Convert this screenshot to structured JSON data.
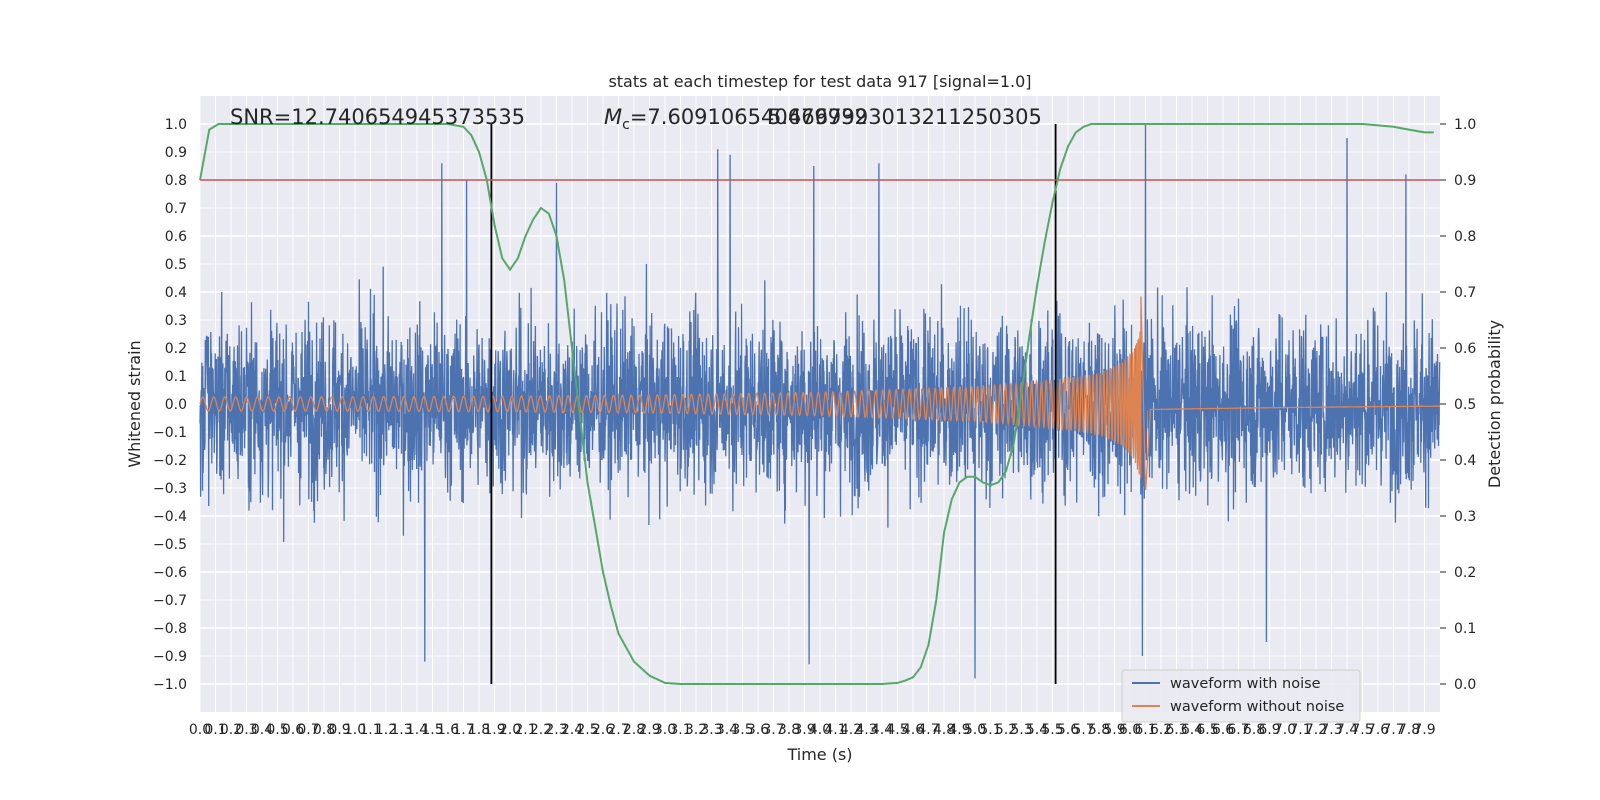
{
  "chart_data": {
    "type": "line",
    "title": "stats at each timestep for test data 917 [signal=1.0]",
    "xlabel": "Time (s)",
    "ylabel": "Whitened strain",
    "y2label": "Detection probability",
    "xlim": [
      0.0,
      8.0
    ],
    "ylim": [
      -1.1,
      1.1
    ],
    "y2lim": [
      -0.05,
      1.05
    ],
    "x_ticks": [
      "0.0",
      "0.1",
      "0.2",
      "0.3",
      "0.4",
      "0.5",
      "0.6",
      "0.7",
      "0.8",
      "0.9",
      "1.0",
      "1.1",
      "1.2",
      "1.3",
      "1.4",
      "1.5",
      "1.6",
      "1.7",
      "1.8",
      "1.9",
      "2.0",
      "2.1",
      "2.2",
      "2.3",
      "2.4",
      "2.5",
      "2.6",
      "2.7",
      "2.8",
      "2.9",
      "3.0",
      "3.1",
      "3.2",
      "3.3",
      "3.4",
      "3.5",
      "3.6",
      "3.7",
      "3.8",
      "3.9",
      "4.0",
      "4.1",
      "4.2",
      "4.3",
      "4.4",
      "4.5",
      "4.6",
      "4.7",
      "4.8",
      "4.9",
      "5.0",
      "5.1",
      "5.2",
      "5.3",
      "5.4",
      "5.5",
      "5.6",
      "5.7",
      "5.8",
      "5.9",
      "6.0",
      "6.1",
      "6.2",
      "6.3",
      "6.4",
      "6.5",
      "6.6",
      "6.7",
      "6.8",
      "6.9",
      "7.0",
      "7.1",
      "7.2",
      "7.3",
      "7.4",
      "7.5",
      "7.6",
      "7.7",
      "7.8",
      "7.9"
    ],
    "y_ticks": [
      "−1.0",
      "−0.9",
      "−0.8",
      "−0.7",
      "−0.6",
      "−0.5",
      "−0.4",
      "−0.3",
      "−0.2",
      "−0.1",
      "0.0",
      "0.1",
      "0.2",
      "0.3",
      "0.4",
      "0.5",
      "0.6",
      "0.7",
      "0.8",
      "0.9",
      "1.0"
    ],
    "y2_ticks": [
      "0.0",
      "0.1",
      "0.2",
      "0.3",
      "0.4",
      "0.5",
      "0.6",
      "0.7",
      "0.8",
      "0.9",
      "1.0"
    ],
    "annotations": {
      "snr": "SNR=12.740654945373535",
      "mc_prefix": "M",
      "mc_sub": "c",
      "mc_value": "=7.609106540679932",
      "mc_overlap": "5.4667993013211250305"
    },
    "threshold": {
      "y2": 0.9,
      "color": "#c44e52"
    },
    "vertical_lines": [
      1.88,
      5.52
    ],
    "series": [
      {
        "name": "waveform with noise",
        "color": "#4c72b0",
        "x_range": [
          0.0,
          8.0
        ],
        "typical_amplitude": 0.45,
        "peak_values": [
          {
            "x": 1.56,
            "y": 0.86
          },
          {
            "x": 1.72,
            "y": 0.8
          },
          {
            "x": 2.3,
            "y": 0.79
          },
          {
            "x": 3.34,
            "y": 0.91
          },
          {
            "x": 3.42,
            "y": 0.89
          },
          {
            "x": 3.96,
            "y": 0.85
          },
          {
            "x": 4.38,
            "y": 0.86
          },
          {
            "x": 6.1,
            "y": 1.0
          },
          {
            "x": 7.4,
            "y": 0.95
          },
          {
            "x": 7.78,
            "y": 0.82
          },
          {
            "x": 1.45,
            "y": -0.92
          },
          {
            "x": 5.0,
            "y": -0.98
          },
          {
            "x": 3.93,
            "y": -0.93
          },
          {
            "x": 6.08,
            "y": -0.9
          },
          {
            "x": 6.88,
            "y": -0.85
          }
        ]
      },
      {
        "name": "waveform without noise",
        "color": "#dd8452",
        "x_range": [
          0.0,
          8.0
        ],
        "merger_time": 6.1,
        "envelope": [
          [
            0.0,
            0.025
          ],
          [
            1.0,
            0.026
          ],
          [
            2.0,
            0.028
          ],
          [
            3.0,
            0.033
          ],
          [
            4.0,
            0.042
          ],
          [
            5.0,
            0.062
          ],
          [
            5.5,
            0.085
          ],
          [
            5.8,
            0.11
          ],
          [
            5.95,
            0.15
          ],
          [
            6.03,
            0.2
          ],
          [
            6.08,
            0.3
          ],
          [
            6.1,
            0.4
          ]
        ],
        "post_merger_offset": -0.02
      },
      {
        "name": "",
        "axis": "y2",
        "color": "#55a868",
        "x": [
          0.0,
          0.06,
          0.12,
          0.3,
          0.6,
          1.0,
          1.4,
          1.6,
          1.7,
          1.75,
          1.8,
          1.85,
          1.9,
          1.95,
          2.0,
          2.05,
          2.1,
          2.15,
          2.2,
          2.25,
          2.3,
          2.35,
          2.4,
          2.45,
          2.5,
          2.55,
          2.6,
          2.65,
          2.7,
          2.8,
          2.9,
          3.0,
          3.1,
          3.2,
          3.5,
          4.0,
          4.4,
          4.5,
          4.55,
          4.6,
          4.65,
          4.7,
          4.75,
          4.8,
          4.85,
          4.9,
          4.95,
          5.0,
          5.05,
          5.1,
          5.15,
          5.2,
          5.25,
          5.3,
          5.35,
          5.4,
          5.45,
          5.5,
          5.55,
          5.6,
          5.65,
          5.7,
          5.75,
          5.8,
          5.9,
          6.0,
          7.0,
          7.5,
          7.7,
          7.8,
          7.9,
          7.96
        ],
        "y": [
          0.9,
          0.99,
          1.0,
          1.0,
          1.0,
          1.0,
          1.0,
          1.0,
          0.995,
          0.98,
          0.95,
          0.9,
          0.82,
          0.76,
          0.74,
          0.76,
          0.8,
          0.83,
          0.85,
          0.84,
          0.8,
          0.72,
          0.6,
          0.48,
          0.36,
          0.28,
          0.2,
          0.14,
          0.09,
          0.04,
          0.015,
          0.002,
          0.0,
          0.0,
          0.0,
          0.0,
          0.0,
          0.002,
          0.006,
          0.012,
          0.03,
          0.07,
          0.15,
          0.27,
          0.33,
          0.36,
          0.37,
          0.37,
          0.36,
          0.355,
          0.36,
          0.38,
          0.43,
          0.52,
          0.62,
          0.71,
          0.79,
          0.86,
          0.92,
          0.96,
          0.985,
          0.995,
          1.0,
          1.0,
          1.0,
          1.0,
          1.0,
          1.0,
          0.995,
          0.99,
          0.985,
          0.985
        ]
      }
    ],
    "legend": {
      "placement": "lower-right",
      "entries": [
        "waveform with noise",
        "waveform without noise"
      ]
    }
  }
}
